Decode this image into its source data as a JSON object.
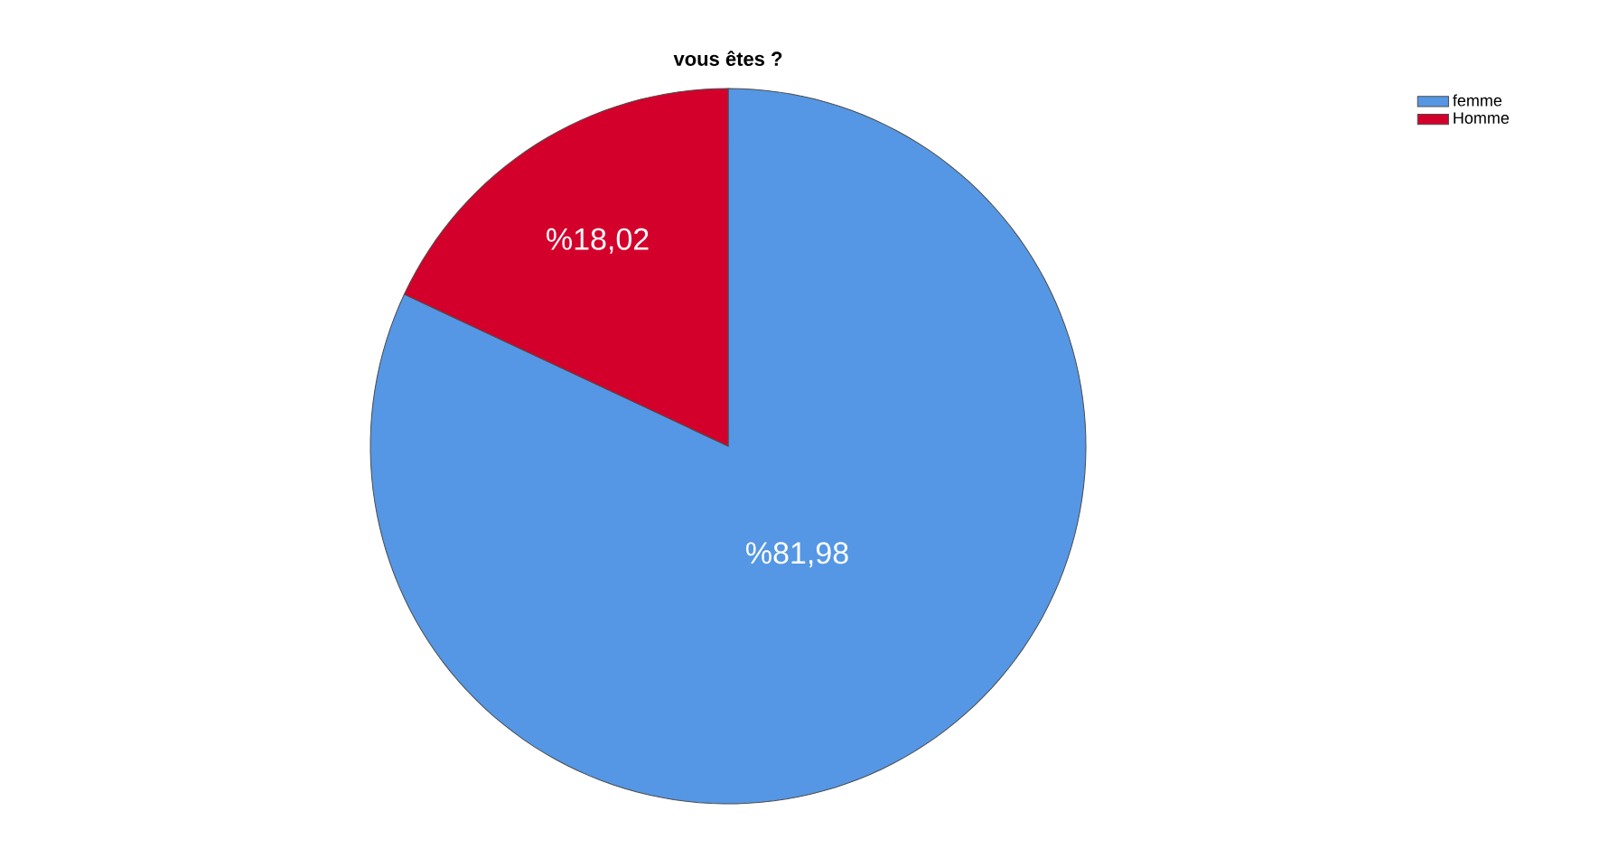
{
  "chart_data": {
    "type": "pie",
    "title": "vous êtes ?",
    "categories": [
      "femme",
      "Homme"
    ],
    "values": [
      81.98,
      18.02
    ],
    "colors": [
      "#5597e4",
      "#d4002c"
    ],
    "value_labels": [
      "%81,98",
      "%18,02"
    ],
    "legend": "top right"
  }
}
